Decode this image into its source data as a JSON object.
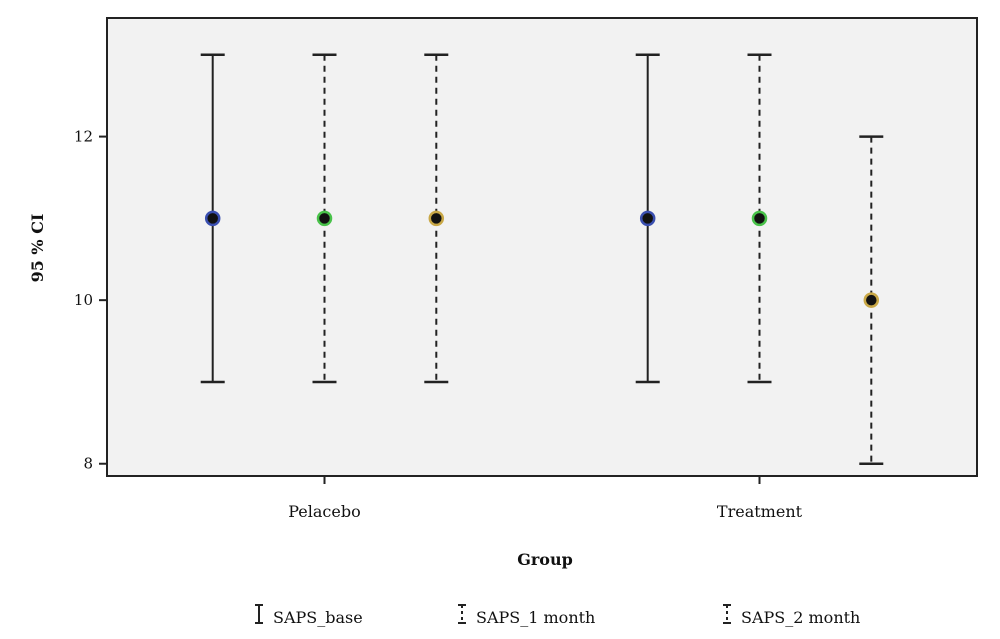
{
  "chart_data": {
    "type": "errorbar",
    "title": "",
    "xlabel": "Group",
    "ylabel": "95 % CI",
    "categories": [
      "Pelacebo",
      "Treatment"
    ],
    "ylim": [
      7.85,
      13.45
    ],
    "yticks": [
      8,
      10,
      12
    ],
    "grid": false,
    "legend_position": "bottom",
    "series": [
      {
        "name": "SAPS_base",
        "line": "solid",
        "marker_color": "#3a4fb0",
        "mean": [
          11,
          11
        ],
        "lower": [
          9,
          9
        ],
        "upper": [
          13,
          13
        ]
      },
      {
        "name": "SAPS_1 month",
        "line": "dashed",
        "marker_color": "#49c24a",
        "mean": [
          11,
          11
        ],
        "lower": [
          9,
          9
        ],
        "upper": [
          13,
          13
        ]
      },
      {
        "name": "SAPS_2 month",
        "line": "dashed",
        "marker_color": "#c9a847",
        "mean": [
          11,
          10
        ],
        "lower": [
          9,
          8
        ],
        "upper": [
          13,
          12
        ]
      }
    ]
  }
}
